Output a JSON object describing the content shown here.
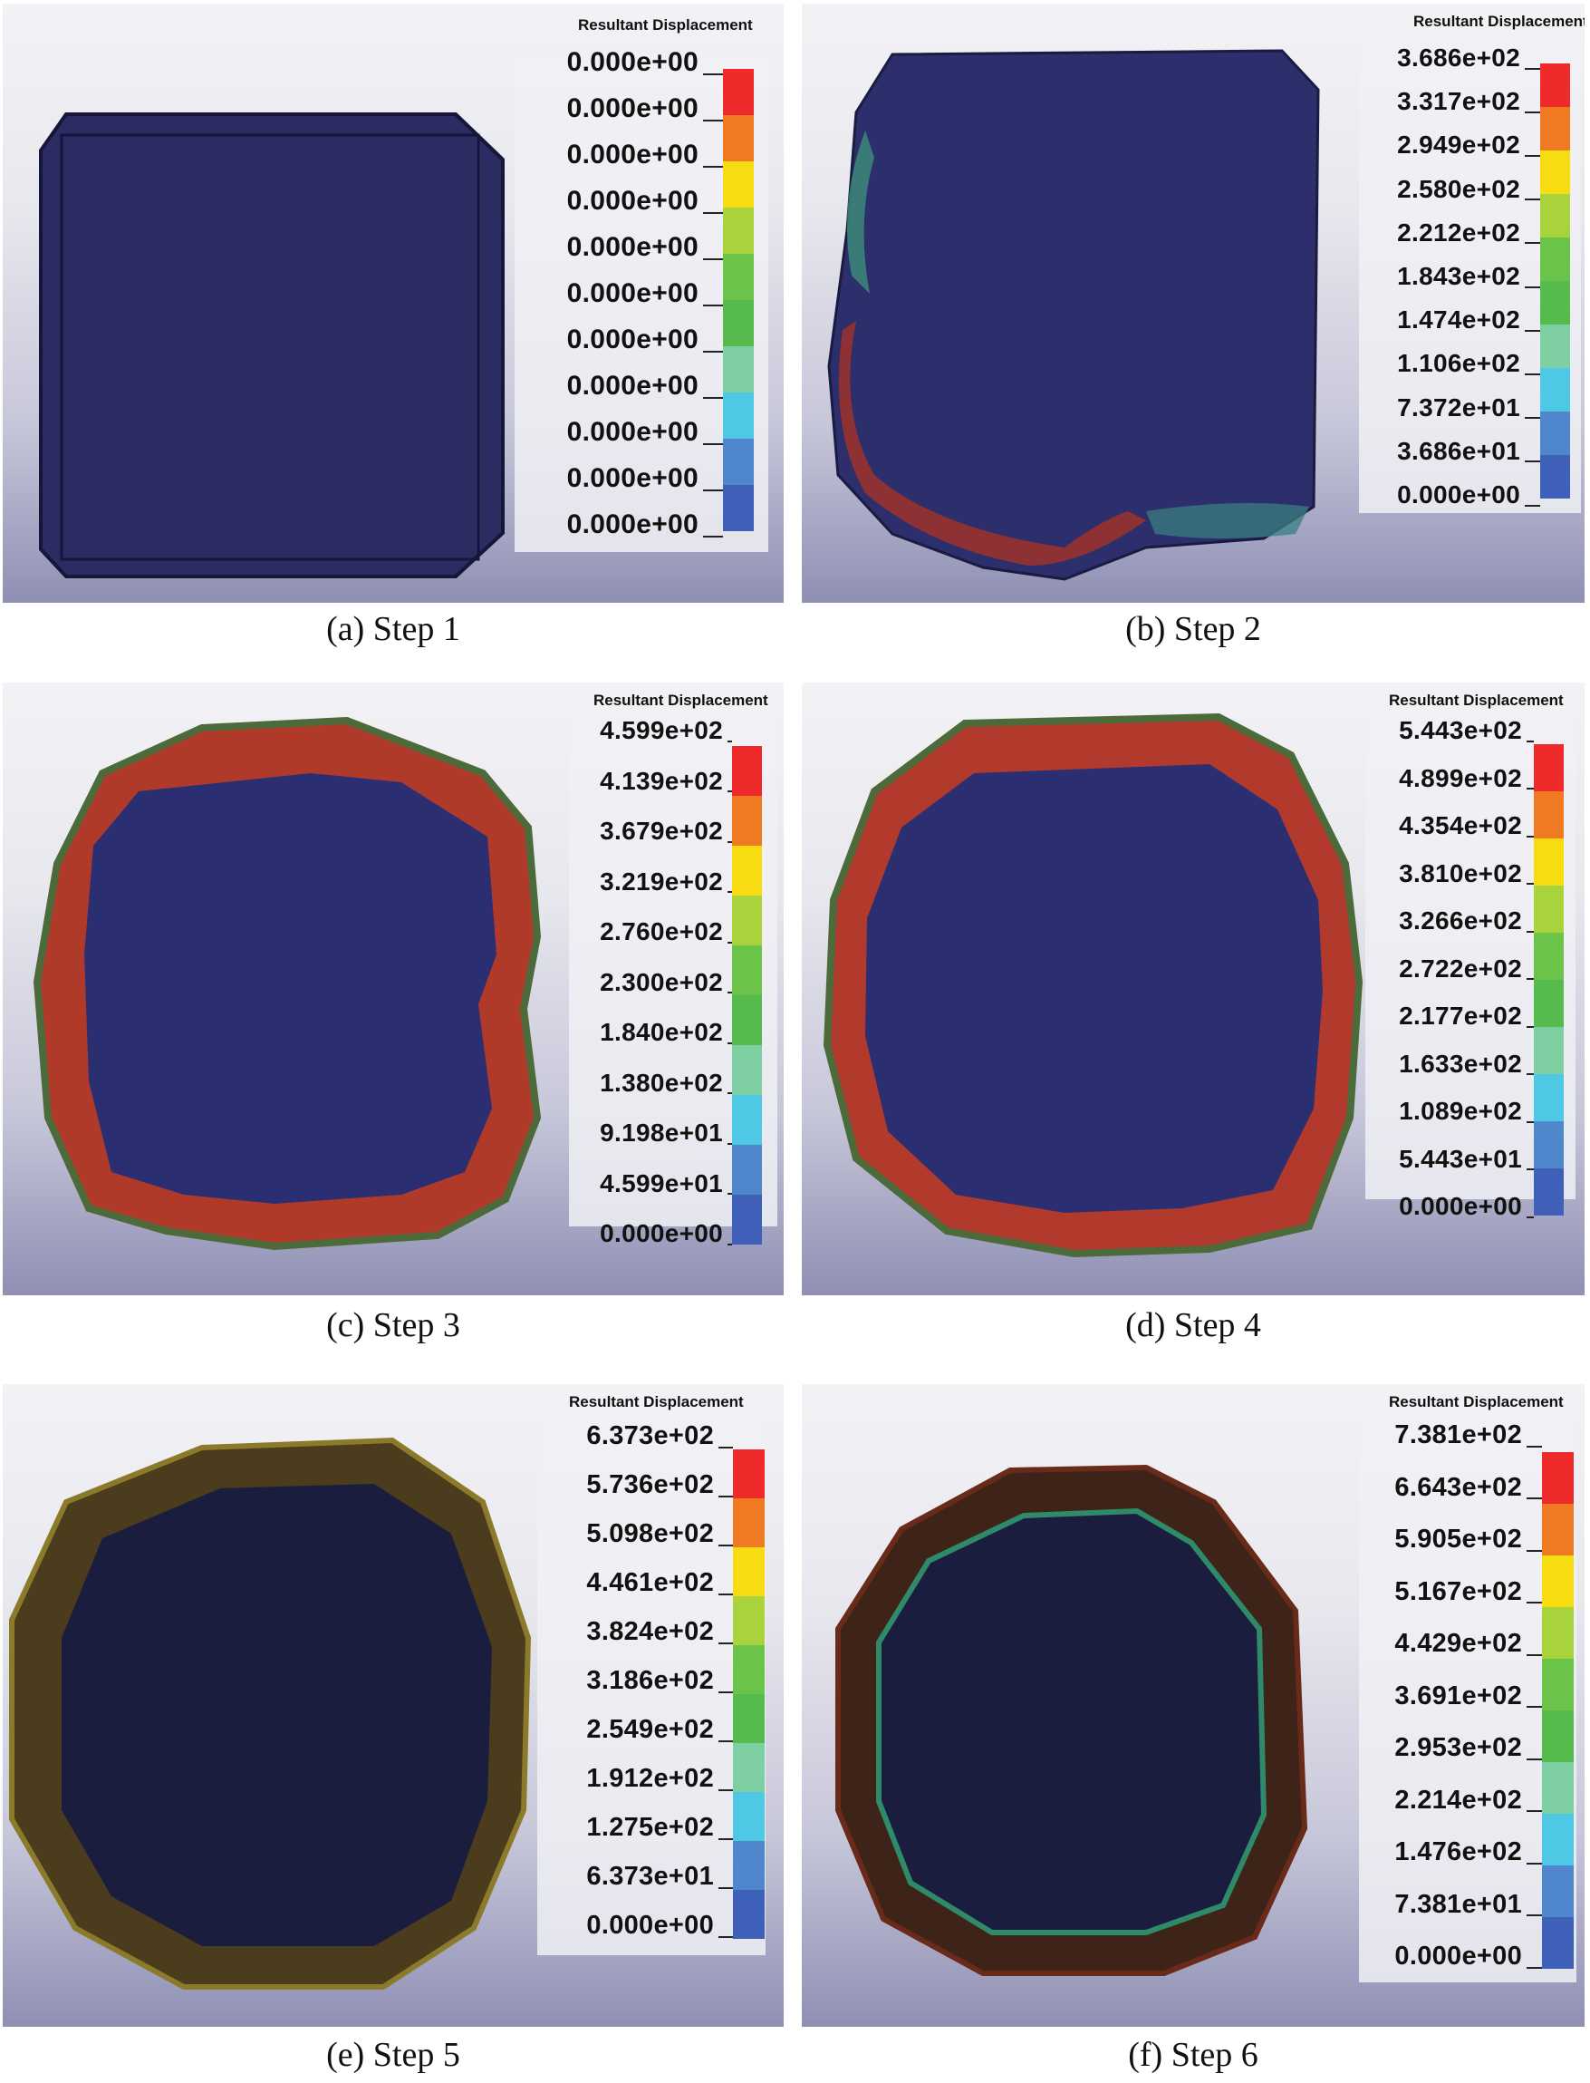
{
  "legend_title": "Resultant Displacement",
  "scale_colors": [
    "#ee2a2a",
    "#ef7a22",
    "#f6dc10",
    "#a9d33c",
    "#6cc34a",
    "#55bb4c",
    "#7ed0a2",
    "#4fc8e6",
    "#4f86cc",
    "#3f60b8",
    "#2f3fa0"
  ],
  "panels": [
    {
      "caption": "(a) Step 1",
      "legend": [
        "0.000e+00",
        "0.000e+00",
        "0.000e+00",
        "0.000e+00",
        "0.000e+00",
        "0.000e+00",
        "0.000e+00",
        "0.000e+00",
        "0.000e+00",
        "0.000e+00",
        "0.000e+00"
      ]
    },
    {
      "caption": "(b) Step 2",
      "legend": [
        "3.686e+02",
        "3.317e+02",
        "2.949e+02",
        "2.580e+02",
        "2.212e+02",
        "1.843e+02",
        "1.474e+02",
        "1.106e+02",
        "7.372e+01",
        "3.686e+01",
        "0.000e+00"
      ]
    },
    {
      "caption": "(c) Step 3",
      "legend": [
        "4.599e+02",
        "4.139e+02",
        "3.679e+02",
        "3.219e+02",
        "2.760e+02",
        "2.300e+02",
        "1.840e+02",
        "1.380e+02",
        "9.198e+01",
        "4.599e+01",
        "0.000e+00"
      ]
    },
    {
      "caption": "(d) Step 4",
      "legend": [
        "5.443e+02",
        "4.899e+02",
        "4.354e+02",
        "3.810e+02",
        "3.266e+02",
        "2.722e+02",
        "2.177e+02",
        "1.633e+02",
        "1.089e+02",
        "5.443e+01",
        "0.000e+00"
      ]
    },
    {
      "caption": "(e) Step 5",
      "legend": [
        "6.373e+02",
        "5.736e+02",
        "5.098e+02",
        "4.461e+02",
        "3.824e+02",
        "3.186e+02",
        "2.549e+02",
        "1.912e+02",
        "1.275e+02",
        "6.373e+01",
        "0.000e+00"
      ]
    },
    {
      "caption": "(f) Step 6",
      "legend": [
        "7.381e+02",
        "6.643e+02",
        "5.905e+02",
        "5.167e+02",
        "4.429e+02",
        "3.691e+02",
        "2.953e+02",
        "2.214e+02",
        "1.476e+02",
        "7.381e+01",
        "0.000e+00"
      ]
    }
  ]
}
